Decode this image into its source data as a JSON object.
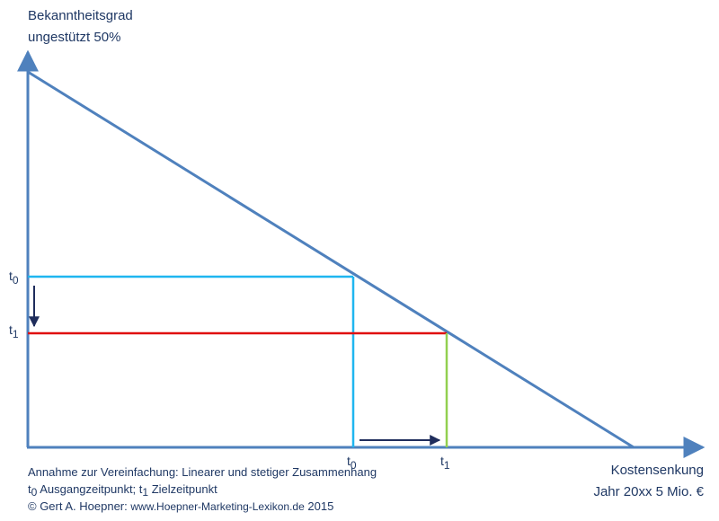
{
  "y_axis": {
    "line1": "Bekanntheitsgrad",
    "line2": "ungestützt 50%"
  },
  "x_axis": {
    "line1": "Kostensenkung",
    "line2": "Jahr 20xx 5 Mio. €"
  },
  "markers": {
    "t0_base": "t",
    "t0_sub": "0",
    "t1_base": "t",
    "t1_sub": "1"
  },
  "notes": {
    "line1": "Annahme zur Vereinfachung: Linearer und stetiger Zusammenhang",
    "line2_t0_base": "t",
    "line2_t0_sub": "0",
    "line2_t0_text": " Ausgangzeitpunkt; ",
    "line2_t1_base": "t",
    "line2_t1_sub": "1",
    "line2_t1_text": " Zielzeitpunkt",
    "copyright": "© Gert A. Hoepner: ",
    "website": "www.Hoepner-Marketing-Lexikon.de",
    "year": " 2015"
  },
  "colors": {
    "axis": "#4f81bd",
    "t0_lines": "#1fb6f0",
    "t1_horizontal": "#e01010",
    "t1_vertical": "#92d050",
    "arrows": "#1f2d5c",
    "text": "#1f3864"
  }
}
